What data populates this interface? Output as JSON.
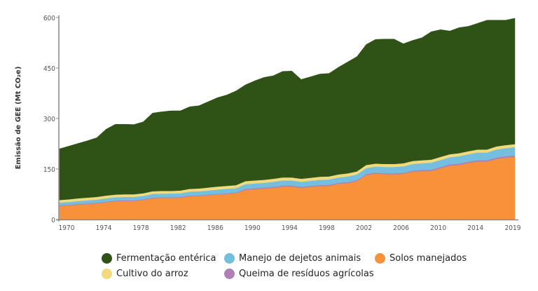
{
  "chart_data": {
    "type": "area",
    "stacked": true,
    "title": "",
    "xlabel": "",
    "ylabel": "Emissão de GEE (Mt CO₂e)",
    "ylim": [
      0,
      600
    ],
    "yticks": [
      0,
      150,
      300,
      450,
      600
    ],
    "xlim": [
      1970,
      2019
    ],
    "xticks": [
      1970,
      1974,
      1978,
      1982,
      1986,
      1990,
      1994,
      1998,
      2002,
      2006,
      2010,
      2014,
      2019
    ],
    "grid": false,
    "legend_position": "bottom",
    "x": [
      1970,
      1971,
      1972,
      1973,
      1974,
      1975,
      1976,
      1977,
      1978,
      1979,
      1980,
      1981,
      1982,
      1983,
      1984,
      1985,
      1986,
      1987,
      1988,
      1989,
      1990,
      1991,
      1992,
      1993,
      1994,
      1995,
      1996,
      1997,
      1998,
      1999,
      2000,
      2001,
      2002,
      2003,
      2004,
      2005,
      2006,
      2007,
      2008,
      2009,
      2010,
      2011,
      2012,
      2013,
      2014,
      2015,
      2016,
      2017,
      2018,
      2019
    ],
    "series": [
      {
        "name": "Solos manejados",
        "color": "#f7923b",
        "values": [
          40,
          42,
          44,
          46,
          48,
          51,
          54,
          55,
          55,
          58,
          63,
          64,
          64,
          65,
          69,
          70,
          72,
          74,
          76,
          78,
          88,
          90,
          92,
          94,
          98,
          98,
          94,
          97,
          99,
          100,
          106,
          108,
          114,
          132,
          136,
          135,
          134,
          136,
          142,
          144,
          144,
          152,
          160,
          162,
          168,
          172,
          172,
          180,
          184,
          186
        ]
      },
      {
        "name": "Queima de resíduos agrícolas",
        "color": "#b07fb5",
        "values": [
          2,
          2,
          2,
          2,
          2,
          2,
          2,
          2,
          2,
          2,
          2,
          2,
          2,
          2,
          2,
          2,
          2,
          2,
          2,
          2,
          3,
          3,
          3,
          3,
          3,
          3,
          3,
          3,
          3,
          3,
          3,
          3,
          3,
          3,
          3,
          3,
          3,
          3,
          3,
          3,
          4,
          4,
          4,
          4,
          4,
          4,
          4,
          4,
          4,
          4
        ]
      },
      {
        "name": "Manejo de dejetos animais",
        "color": "#74bfdf",
        "values": [
          8,
          8,
          9,
          9,
          9,
          10,
          10,
          10,
          10,
          10,
          11,
          11,
          11,
          11,
          12,
          12,
          12,
          13,
          13,
          13,
          14,
          14,
          14,
          15,
          15,
          15,
          15,
          15,
          16,
          16,
          16,
          17,
          17,
          18,
          18,
          18,
          19,
          19,
          20,
          20,
          21,
          21,
          21,
          22,
          22,
          23,
          23,
          24,
          24,
          25
        ]
      },
      {
        "name": "Cultivo do arroz",
        "color": "#f1d97e",
        "values": [
          8,
          8,
          8,
          8,
          8,
          8,
          8,
          8,
          8,
          8,
          8,
          8,
          8,
          8,
          8,
          8,
          9,
          9,
          9,
          9,
          9,
          9,
          9,
          9,
          9,
          9,
          9,
          9,
          9,
          9,
          9,
          9,
          9,
          9,
          9,
          9,
          9,
          9,
          9,
          9,
          9,
          9,
          9,
          9,
          9,
          9,
          9,
          9,
          9,
          9
        ]
      },
      {
        "name": "Fermentação entérica",
        "color": "#2f5216",
        "values": [
          152,
          158,
          163,
          169,
          176,
          197,
          209,
          208,
          207,
          212,
          232,
          235,
          238,
          237,
          244,
          246,
          255,
          264,
          270,
          280,
          286,
          296,
          304,
          306,
          315,
          316,
          295,
          300,
          305,
          306,
          318,
          331,
          341,
          358,
          369,
          371,
          371,
          355,
          358,
          364,
          380,
          378,
          366,
          373,
          371,
          375,
          384,
          375,
          371,
          374
        ]
      }
    ]
  },
  "legend": {
    "rows": [
      [
        {
          "label": "Fermentação entérica",
          "color": "#2f5216"
        },
        {
          "label": "Manejo de dejetos animais",
          "color": "#74bfdf"
        },
        {
          "label": "Solos manejados",
          "color": "#f7923b"
        }
      ],
      [
        {
          "label": "Cultivo do arroz",
          "color": "#f1d97e"
        },
        {
          "label": "Queima de resíduos agrícolas",
          "color": "#b07fb5"
        }
      ]
    ]
  }
}
